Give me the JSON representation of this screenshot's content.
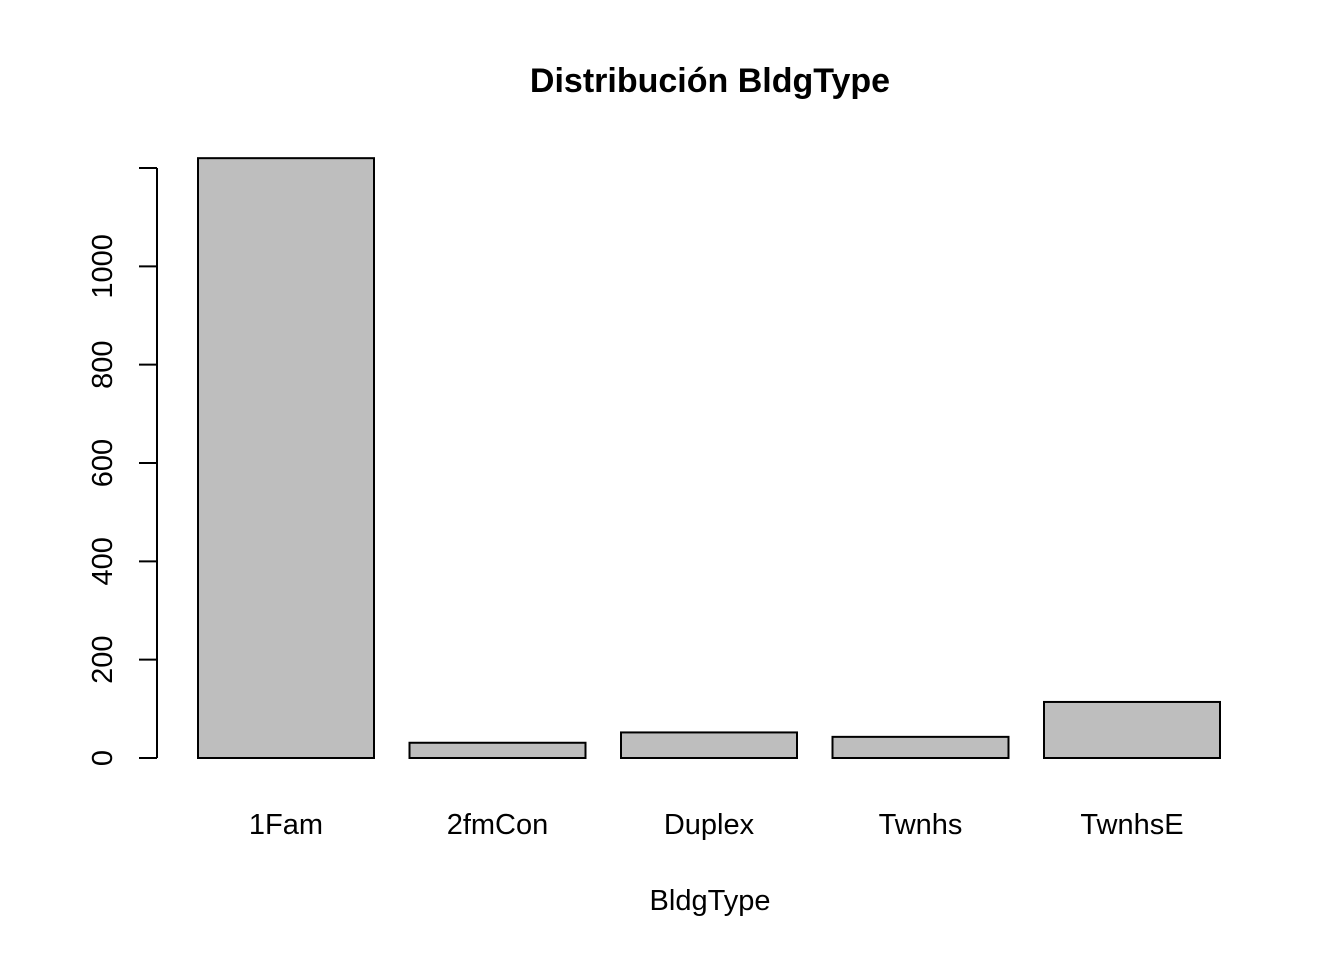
{
  "chart_data": {
    "type": "bar",
    "title": "Distribución BldgType",
    "xlabel": "BldgType",
    "ylabel": "",
    "categories": [
      "1Fam",
      "2fmCon",
      "Duplex",
      "Twnhs",
      "TwnhsE"
    ],
    "values": [
      1220,
      31,
      52,
      43,
      114
    ],
    "ylim": [
      0,
      1200
    ],
    "yticks": [
      0,
      200,
      400,
      600,
      800,
      1000
    ],
    "bar_color": "#bebebe",
    "grid": false,
    "legend": "none"
  }
}
